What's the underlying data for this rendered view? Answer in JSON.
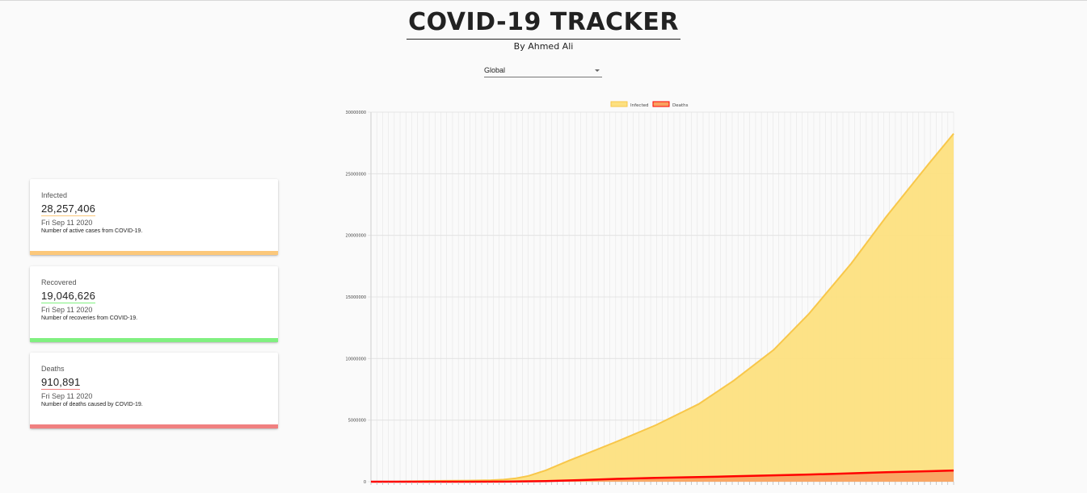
{
  "header": {
    "title": "COVID-19 TRACKER",
    "subtitle": "By Ahmed Ali"
  },
  "country_picker": {
    "selected": "Global"
  },
  "cards": [
    {
      "label": "Infected",
      "value": "28,257,406",
      "date": "Fri Sep 11 2020",
      "description": "Number of active cases from COVID-19.",
      "color": "#fcc87a"
    },
    {
      "label": "Recovered",
      "value": "19,046,626",
      "date": "Fri Sep 11 2020",
      "description": "Number of recoveries from COVID-19.",
      "color": "#80f080"
    },
    {
      "label": "Deaths",
      "value": "910,891",
      "date": "Fri Sep 11 2020",
      "description": "Number of deaths caused by COVID-19.",
      "color": "#f08080"
    }
  ],
  "chart_data": {
    "type": "area",
    "legend_position": "top",
    "grid": true,
    "ylim": [
      0,
      30000000
    ],
    "yticks": [
      "0",
      "5000000",
      "10000000",
      "15000000",
      "20000000",
      "25000000",
      "30000000"
    ],
    "series": [
      {
        "name": "Infected",
        "color": "#f8c74a",
        "fill": "#fde080",
        "points": [
          [
            "2020-01-22",
            555
          ],
          [
            "2020-02-01",
            12000
          ],
          [
            "2020-02-15",
            69000
          ],
          [
            "2020-03-01",
            88000
          ],
          [
            "2020-03-10",
            120000
          ],
          [
            "2020-03-15",
            170000
          ],
          [
            "2020-03-20",
            280000
          ],
          [
            "2020-03-25",
            470000
          ],
          [
            "2020-04-01",
            930000
          ],
          [
            "2020-04-10",
            1700000
          ],
          [
            "2020-04-20",
            2500000
          ],
          [
            "2020-05-01",
            3400000
          ],
          [
            "2020-05-15",
            4600000
          ],
          [
            "2020-06-01",
            6300000
          ],
          [
            "2020-06-15",
            8200000
          ],
          [
            "2020-07-01",
            10700000
          ],
          [
            "2020-07-15",
            13600000
          ],
          [
            "2020-08-01",
            17700000
          ],
          [
            "2020-08-15",
            21500000
          ],
          [
            "2020-09-01",
            25800000
          ],
          [
            "2020-09-11",
            28257406
          ]
        ]
      },
      {
        "name": "Deaths",
        "color": "#ff0000",
        "fill": "#f8a060",
        "points": [
          [
            "2020-01-22",
            17
          ],
          [
            "2020-02-15",
            1600
          ],
          [
            "2020-03-01",
            3000
          ],
          [
            "2020-03-15",
            6500
          ],
          [
            "2020-04-01",
            47000
          ],
          [
            "2020-04-15",
            130000
          ],
          [
            "2020-05-01",
            240000
          ],
          [
            "2020-05-15",
            310000
          ],
          [
            "2020-06-01",
            375000
          ],
          [
            "2020-06-15",
            440000
          ],
          [
            "2020-07-01",
            515000
          ],
          [
            "2020-07-15",
            580000
          ],
          [
            "2020-08-01",
            680000
          ],
          [
            "2020-08-15",
            770000
          ],
          [
            "2020-09-01",
            855000
          ],
          [
            "2020-09-11",
            910891
          ]
        ]
      }
    ]
  }
}
